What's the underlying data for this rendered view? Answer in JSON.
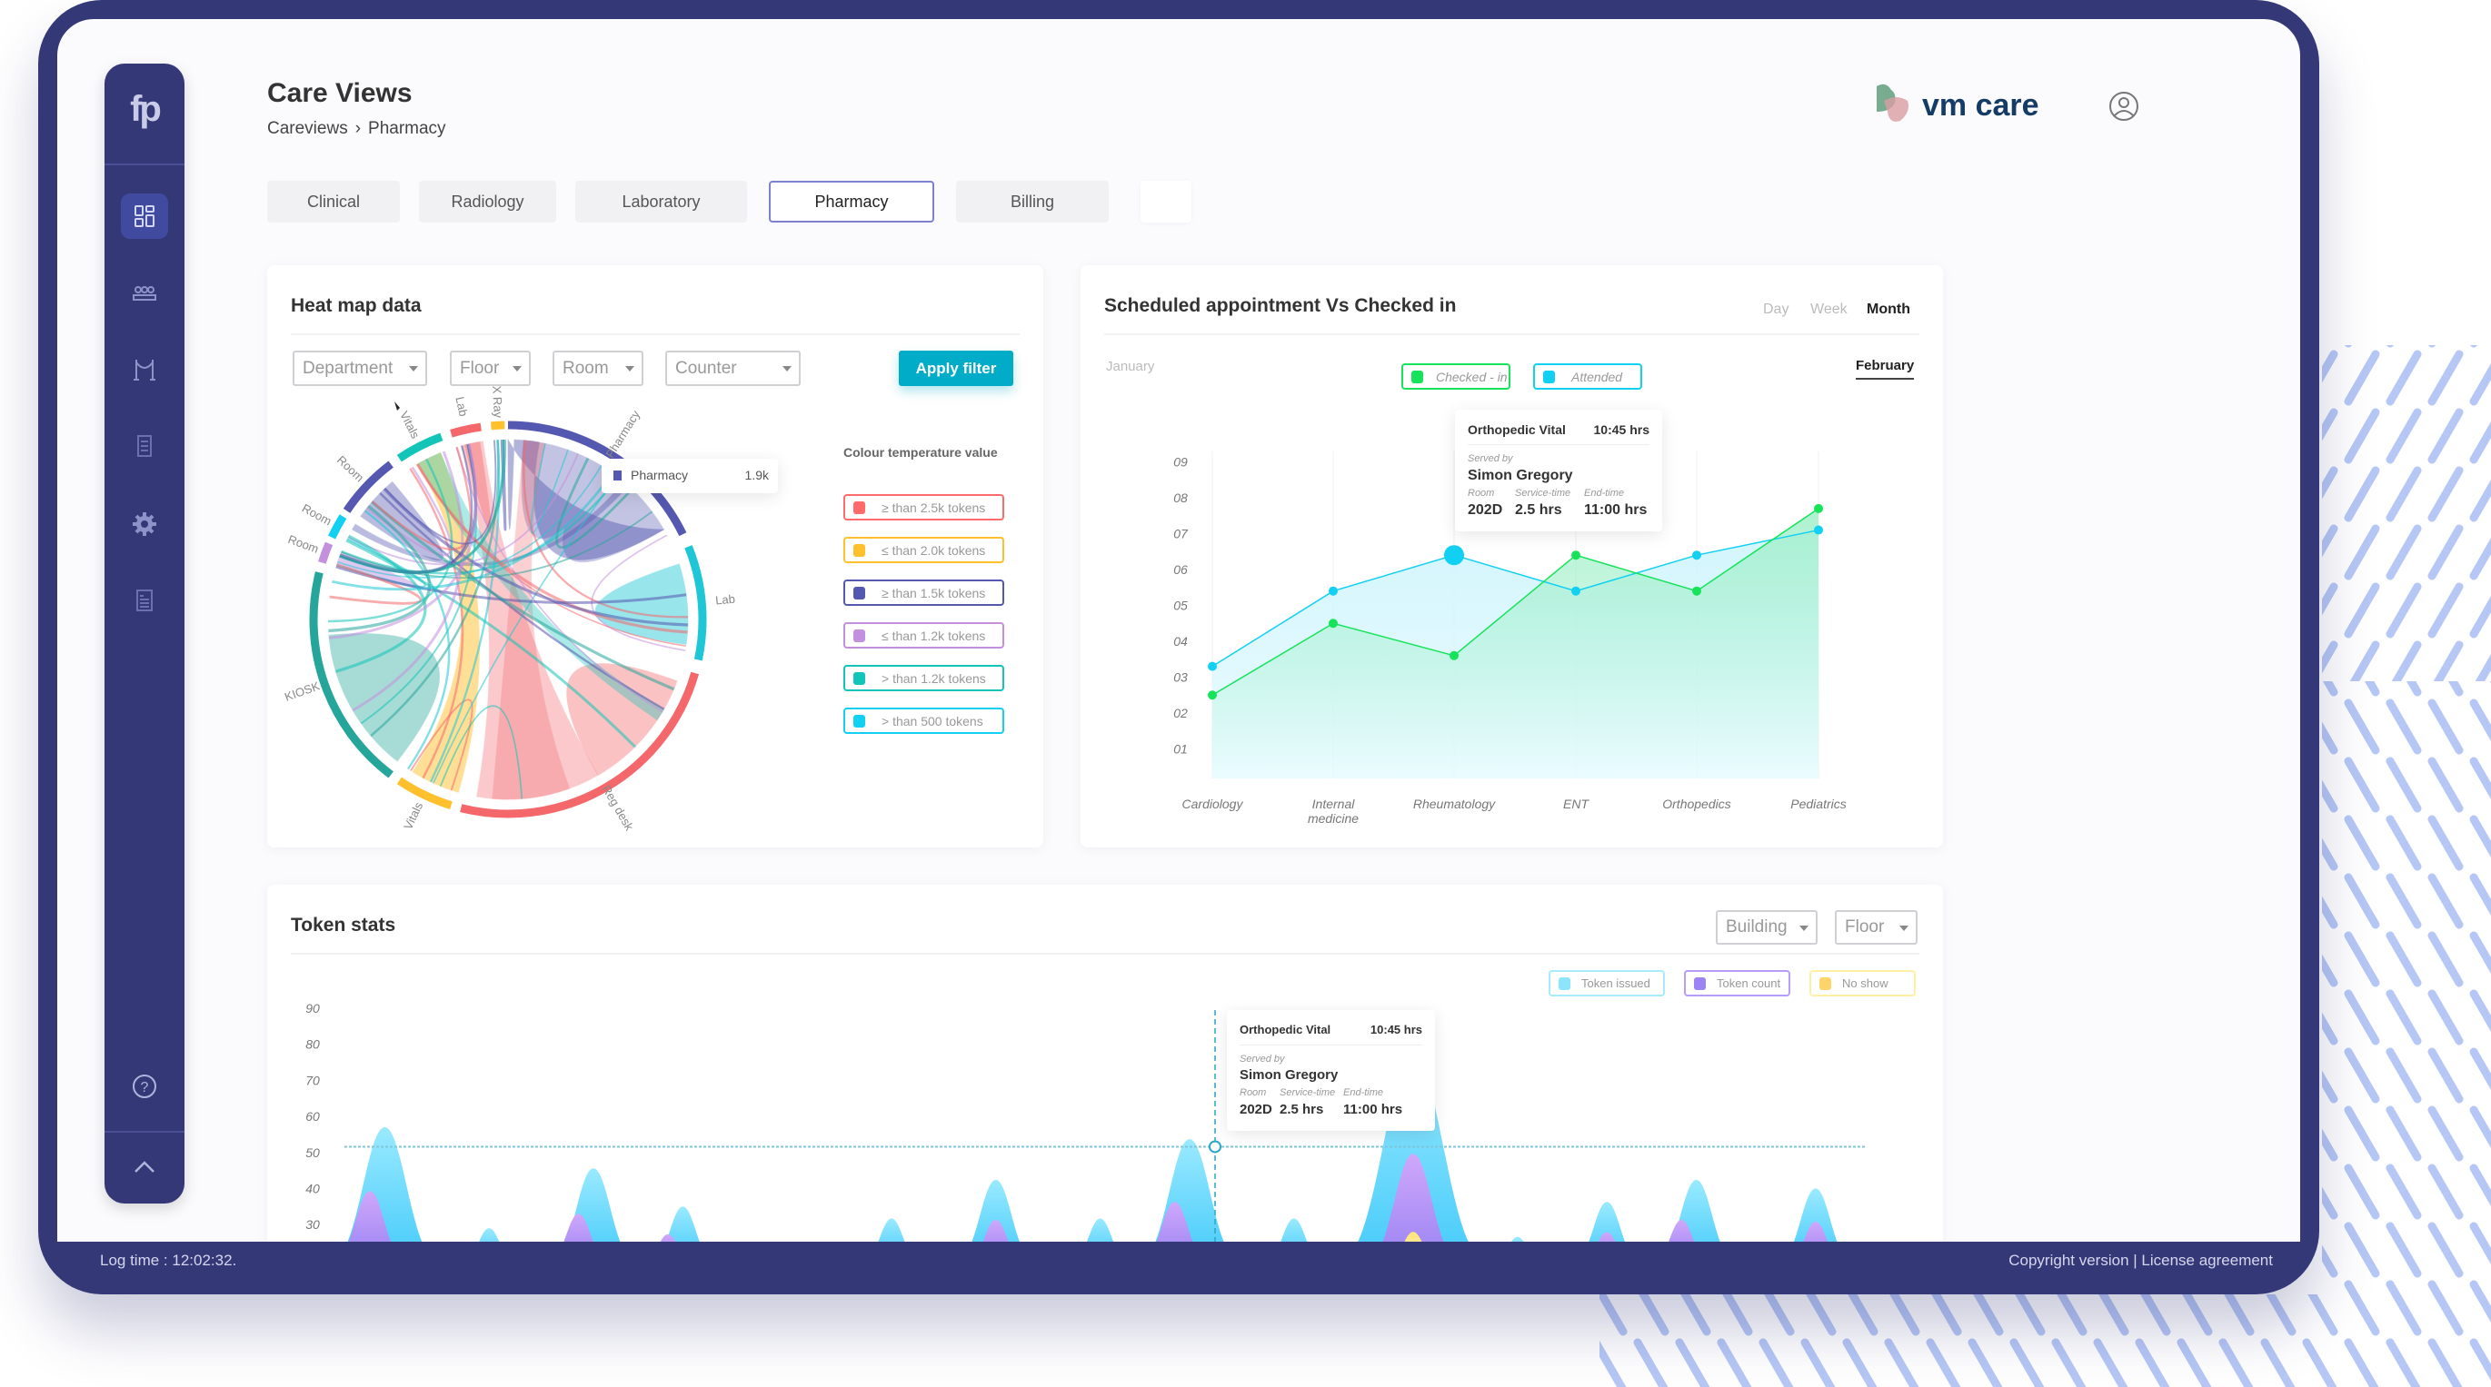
{
  "app": {
    "title": "Care Views",
    "brand_logo": "fp",
    "partner_logo": "vm care"
  },
  "breadcrumb": [
    {
      "label": "Careviews"
    },
    {
      "label": "Pharmacy"
    }
  ],
  "sidebar": {
    "items": [
      {
        "icon": "dashboard-icon",
        "active": true
      },
      {
        "icon": "group-icon"
      },
      {
        "icon": "queue-barrier-icon"
      },
      {
        "icon": "report-icon"
      },
      {
        "icon": "gear-icon"
      },
      {
        "icon": "document-icon"
      }
    ],
    "help_icon": "help-icon",
    "collapse_icon": "chevron-up-icon"
  },
  "tabs": [
    {
      "label": "Clinical"
    },
    {
      "label": "Radiology"
    },
    {
      "label": "Laboratory"
    },
    {
      "label": "Pharmacy",
      "active": true
    },
    {
      "label": "Billing"
    }
  ],
  "heatmap": {
    "title": "Heat map data",
    "filters": [
      {
        "placeholder": "Department"
      },
      {
        "placeholder": "Floor"
      },
      {
        "placeholder": "Room"
      },
      {
        "placeholder": "Counter"
      }
    ],
    "apply_label": "Apply filter",
    "legend_title": "Colour temperature value",
    "legend": [
      {
        "label": "≥ than 2.5k tokens",
        "color": "#ff6b6b"
      },
      {
        "label": "≤ than 2.0k tokens",
        "color": "#ffc02e"
      },
      {
        "label": "≥ than 1.5k tokens",
        "color": "#5558b0"
      },
      {
        "label": "≤ than 1.2k tokens",
        "color": "#c390de"
      },
      {
        "label": "> than 1.2k tokens",
        "color": "#12c5b8"
      },
      {
        "label": "> than 500 tokens",
        "color": "#12d0f2"
      }
    ],
    "segments": [
      {
        "label": "Pharmacy",
        "color": "#5558b0"
      },
      {
        "label": "Lab",
        "color": "#1fc6d6"
      },
      {
        "label": "Reg desk",
        "color": "#f4686c"
      },
      {
        "label": "Vitals",
        "color": "#ffc02e"
      },
      {
        "label": "KIOSK",
        "color": "#26a69a"
      },
      {
        "label": "Room",
        "color": "#c390de"
      },
      {
        "label": "Room",
        "color": "#12d0f2"
      },
      {
        "label": "Room",
        "color": "#5558b0"
      },
      {
        "label": "Vitals",
        "color": "#12c5b8"
      },
      {
        "label": "Lab",
        "color": "#f4686c"
      },
      {
        "label": "X Ray",
        "color": "#ffc02e"
      }
    ],
    "tooltip": {
      "label": "Pharmacy",
      "value": "1.9k"
    }
  },
  "scheduled": {
    "title": "Scheduled appointment  Vs Checked in",
    "periods": [
      {
        "label": "Day"
      },
      {
        "label": "Week"
      },
      {
        "label": "Month",
        "active": true
      }
    ],
    "prev_month": "January",
    "current_month": "February",
    "tooltip": {
      "title": "Orthopedic Vital",
      "time": "10:45 hrs",
      "served_by_label": "Served by",
      "served_by": "Simon Gregory",
      "room_label": "Room",
      "room": "202D",
      "service_label": "Service-time",
      "service": "2.5 hrs",
      "end_label": "End-time",
      "end": "11:00 hrs"
    }
  },
  "token": {
    "title": "Token stats",
    "filters": [
      {
        "placeholder": "Building"
      },
      {
        "placeholder": "Floor"
      }
    ],
    "tooltip": {
      "title": "Orthopedic Vital",
      "time": "10:45 hrs",
      "served_by_label": "Served by",
      "served_by": "Simon Gregory",
      "room_label": "Room",
      "room": "202D",
      "service_label": "Service-time",
      "service": "2.5 hrs",
      "end_label": "End-time",
      "end": "11:00 hrs"
    }
  },
  "chart_data": [
    {
      "type": "area",
      "categories": [
        "Cardiology",
        "Internal medicine",
        "Rheumatology",
        "ENT",
        "Orthopedics",
        "Pediatrics"
      ],
      "yticks": [
        "01",
        "02",
        "03",
        "04",
        "05",
        "06",
        "07",
        "08",
        "09"
      ],
      "ylim": [
        0,
        9
      ],
      "grid": "vertical",
      "legend_placement": "top-center",
      "series": [
        {
          "name": "Checked - in",
          "color": "#17e35a",
          "values": [
            2.5,
            4.5,
            3.6,
            6.4,
            5.4,
            7.7
          ]
        },
        {
          "name": "Attended",
          "color": "#12d0f2",
          "values": [
            3.3,
            5.4,
            6.4,
            5.4,
            6.4,
            7.1
          ]
        }
      ],
      "highlight": {
        "series": "Attended",
        "category": "Rheumatology"
      }
    },
    {
      "type": "area",
      "yticks": [
        "90",
        "80",
        "70",
        "60",
        "50",
        "40",
        "30"
      ],
      "ylim": [
        25,
        90
      ],
      "legend_placement": "top-right",
      "reference_value": 51.6,
      "series": [
        {
          "name": "Token issued",
          "color": "#5ad5fb",
          "peaks": [
            [
              1,
              57
            ],
            [
              8,
              29
            ],
            [
              15,
              45.6
            ],
            [
              21,
              35
            ],
            [
              35,
              31.7
            ],
            [
              42,
              42.4
            ],
            [
              49,
              31.7
            ],
            [
              55,
              53.7
            ],
            [
              62,
              31.7
            ],
            [
              70,
              77
            ],
            [
              77,
              26.6
            ],
            [
              83,
              36.3
            ],
            [
              89,
              42.4
            ],
            [
              97,
              40
            ]
          ]
        },
        {
          "name": "Token count",
          "color": "#b597f5",
          "peaks": [
            [
              0,
              39.3
            ],
            [
              14,
              33
            ],
            [
              20,
              27.3
            ],
            [
              42,
              31.3
            ],
            [
              54,
              36.3
            ],
            [
              70,
              49.6
            ],
            [
              83,
              27.9
            ],
            [
              88,
              31.3
            ],
            [
              97,
              30.8
            ]
          ]
        },
        {
          "name": "No show",
          "color": "#ffd56b",
          "peaks": [
            [
              70,
              28
            ]
          ]
        }
      ]
    }
  ],
  "footer": {
    "log_time": "Log time : 12:02:32.",
    "links": "Copyright version  | License agreement"
  }
}
